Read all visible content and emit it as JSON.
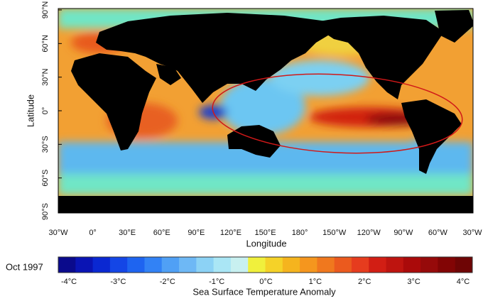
{
  "map": {
    "y_axis_label": "Latitude",
    "x_axis_label": "Longitude",
    "lat_ticks": [
      "90°N",
      "60°N",
      "30°N",
      "0°",
      "30°S",
      "60°S",
      "90°S"
    ],
    "lon_ticks": [
      "30°W",
      "0°",
      "30°E",
      "60°E",
      "90°E",
      "120°E",
      "150°E",
      "180°",
      "150°W",
      "120°W",
      "90°W",
      "60°W",
      "30°W"
    ]
  },
  "colorbar": {
    "date": "Oct 1997",
    "ticks": [
      "-4°C",
      "-3°C",
      "-2°C",
      "-1°C",
      "0°C",
      "1°C",
      "2°C",
      "3°C",
      "4°C"
    ],
    "title": "Sea Surface Temperature Anomaly"
  }
}
